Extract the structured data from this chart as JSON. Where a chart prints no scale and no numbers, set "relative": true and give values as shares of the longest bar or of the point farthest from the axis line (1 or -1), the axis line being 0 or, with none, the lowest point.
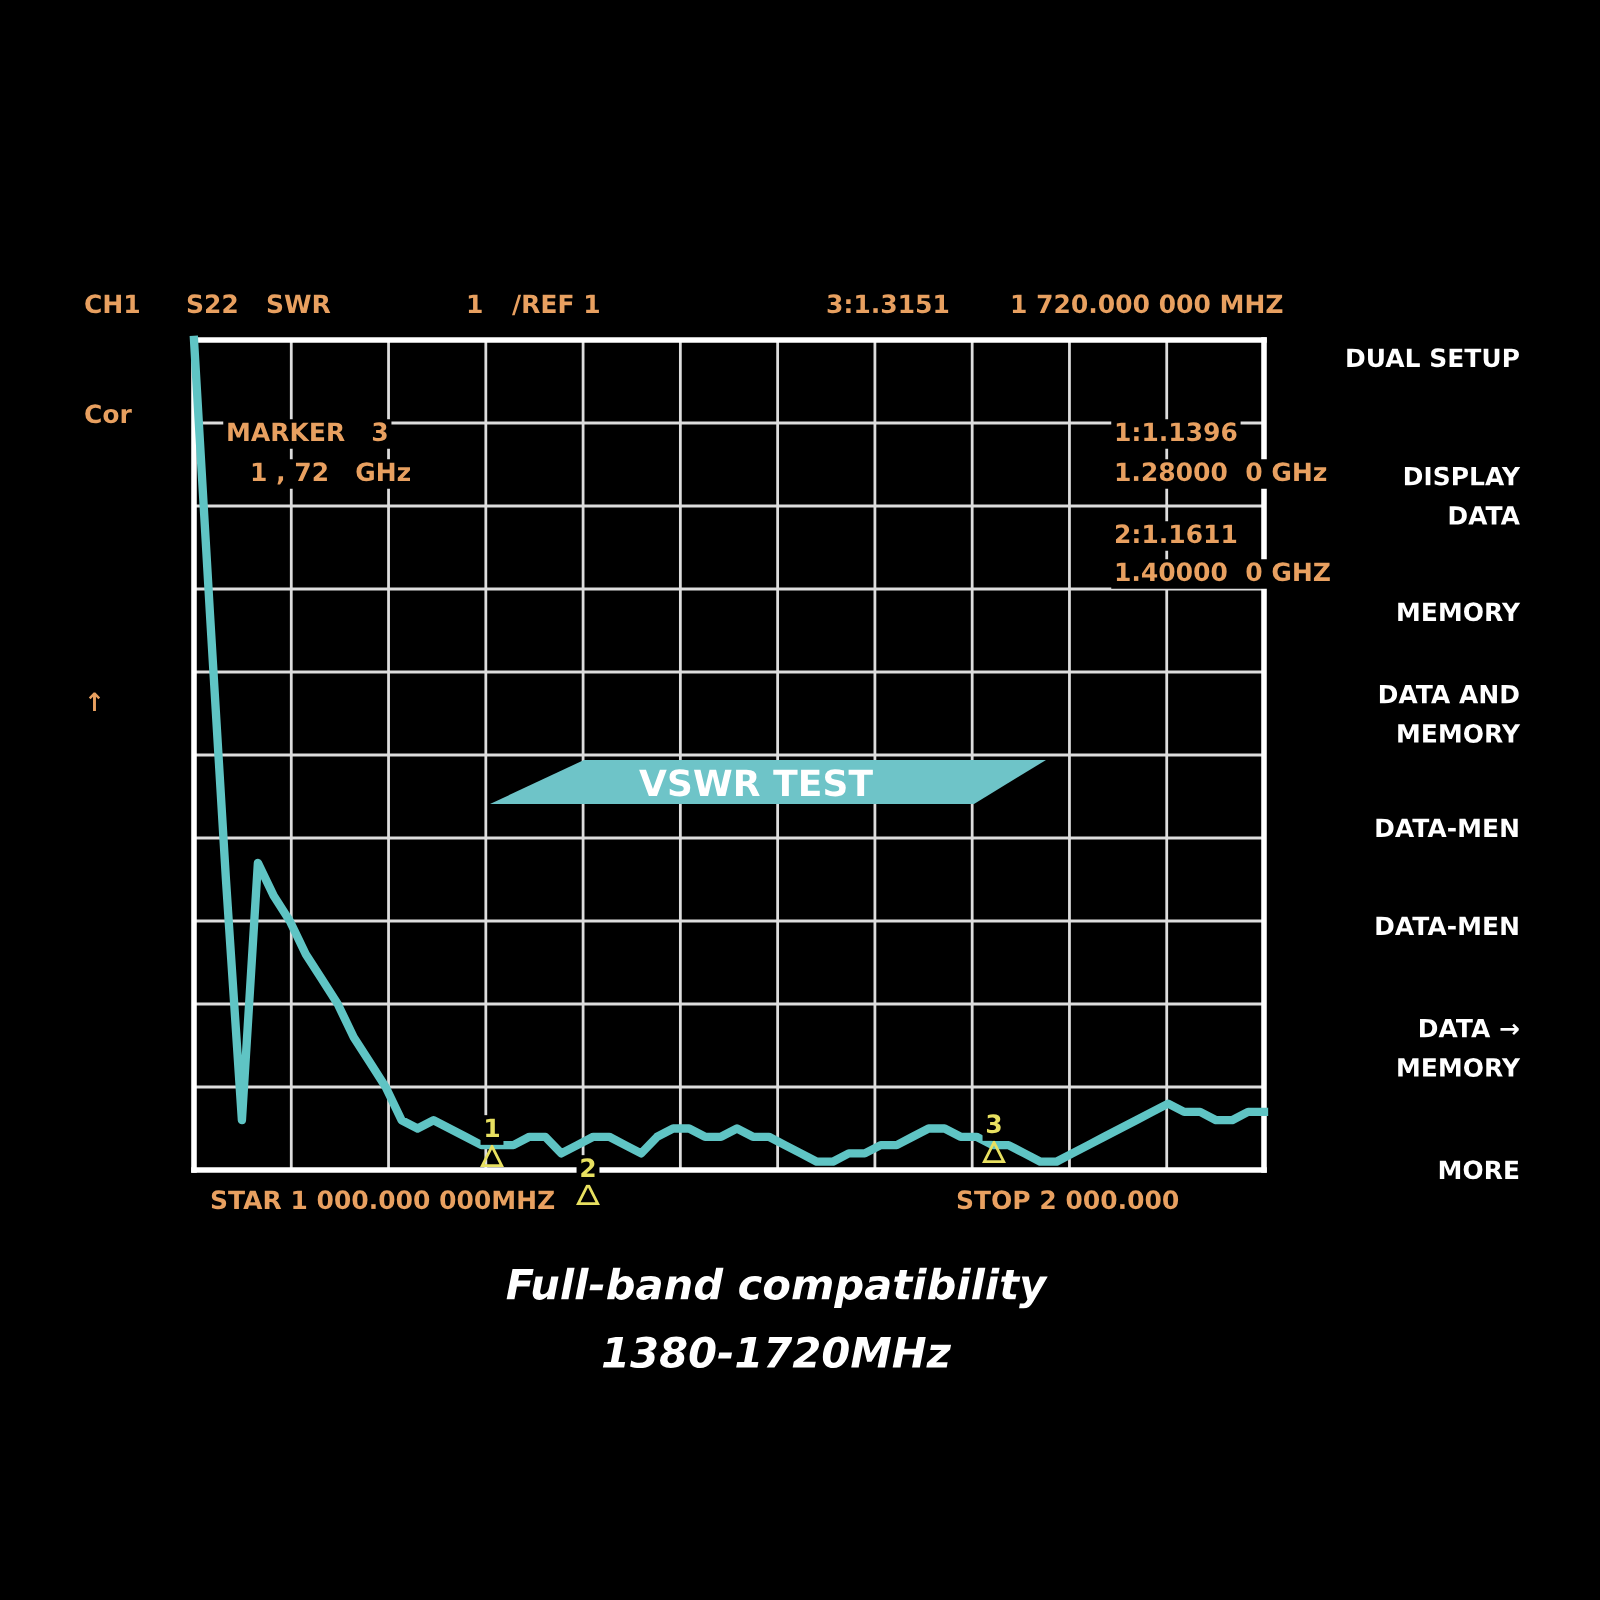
{
  "chart_data": {
    "type": "line",
    "relative": true,
    "color": "#5fc4c4",
    "categories": [
      null,
      null,
      null,
      null,
      null,
      null,
      null,
      null,
      null,
      null,
      null,
      null,
      null,
      null,
      null,
      null,
      null,
      null,
      null,
      null,
      null,
      null,
      null,
      null,
      null,
      null,
      null,
      null,
      null,
      null,
      null,
      null,
      null,
      null,
      null,
      null,
      null,
      null,
      null,
      null,
      null,
      null,
      null,
      null,
      null,
      null,
      null,
      null,
      null,
      null,
      null,
      null,
      null,
      null,
      null,
      null,
      null,
      null,
      null,
      null,
      null,
      null,
      null,
      null,
      null,
      null,
      null,
      null
    ],
    "values": [
      1.0,
      0.67,
      0.35,
      0.06,
      0.37,
      0.33,
      0.3,
      0.26,
      0.23,
      0.2,
      0.16,
      0.13,
      0.1,
      0.06,
      0.05,
      0.06,
      0.05,
      0.04,
      0.03,
      0.03,
      0.03,
      0.04,
      0.04,
      0.02,
      0.03,
      0.04,
      0.04,
      0.03,
      0.02,
      0.04,
      0.05,
      0.05,
      0.04,
      0.04,
      0.05,
      0.04,
      0.04,
      0.03,
      0.02,
      0.01,
      0.01,
      0.02,
      0.02,
      0.03,
      0.03,
      0.04,
      0.05,
      0.05,
      0.04,
      0.04,
      0.03,
      0.03,
      0.02,
      0.01,
      0.01,
      0.02,
      0.03,
      0.04,
      0.05,
      0.06,
      0.07,
      0.08,
      0.07,
      0.07,
      0.06,
      0.06,
      0.07,
      0.07
    ],
    "grid": true,
    "marker": "none",
    "annotations": [
      "1",
      "2",
      "3",
      "CH1",
      "S22",
      "SWR",
      "1",
      "/REF 1",
      "3:1.3151",
      "1 720.000 000 MHZ",
      "Cor",
      "↑",
      "MARKER   3",
      "1 , 72   GHz",
      "1:1.1396",
      "1.28000  0 GHz",
      "2:1.1611",
      "1.40000  0 GHZ",
      "VSWR TEST",
      "STAR 1 000.000 000MHZ",
      "STOP 2 000.000",
      "DUAL SETUP",
      "DISPLAY\nDATA",
      "MEMORY",
      "DATA AND\nMEMORY",
      "DATA-MEN",
      "DATA-MEN",
      "DATA →\nMEMORY",
      "MORE",
      "Full-band compatibility",
      "1380-1720MHz"
    ]
  }
}
